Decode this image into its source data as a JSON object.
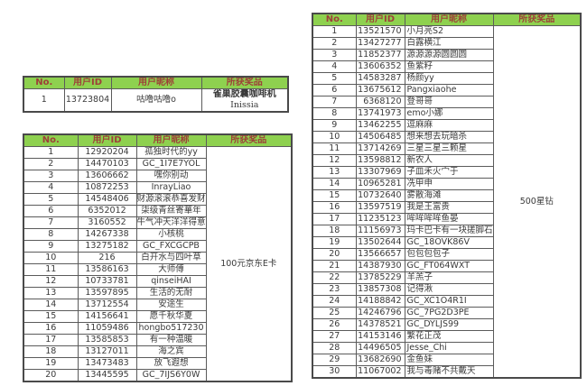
{
  "colors": {
    "header_bg": "#8ed14f",
    "header_text": "#9d4038",
    "body_text": "#3a3a3a",
    "border": "#5b5b5b"
  },
  "tables": [
    {
      "name": "coffee-machine-winner",
      "headers": [
        "No.",
        "用户ID",
        "用户昵称",
        "所获奖品"
      ],
      "prize_lines": [
        "雀巢胶囊咖啡机",
        "Inissia"
      ],
      "rows": [
        [
          "1",
          "13723804",
          "咕噜咕噜o"
        ]
      ]
    },
    {
      "name": "jd-ecard-winners",
      "headers": [
        "No.",
        "用户ID",
        "用户昵称",
        "所获奖品"
      ],
      "prize": "100元京东E卡",
      "rows": [
        [
          "1",
          "12920204",
          "孤独时代的yy"
        ],
        [
          "2",
          "14470103",
          "GC_1I7E7YOL"
        ],
        [
          "3",
          "13606662",
          "嘿你别动"
        ],
        [
          "4",
          "10872253",
          "InrayLiao"
        ],
        [
          "5",
          "14548406",
          "财源滚滚恭喜发财"
        ],
        [
          "6",
          "6352012",
          "柒级青丝寄華年"
        ],
        [
          "7",
          "3160552",
          "牛气冲天洋洋得意"
        ],
        [
          "8",
          "14267338",
          "小核桃"
        ],
        [
          "9",
          "13275182",
          "GC_FXCGCPB"
        ],
        [
          "10",
          "216",
          "白开水与四叶草"
        ],
        [
          "11",
          "13586163",
          "大师傅"
        ],
        [
          "12",
          "10733781",
          "qinseiHAI"
        ],
        [
          "13",
          "13597895",
          "生活的无耐"
        ],
        [
          "14",
          "13712554",
          "安途生"
        ],
        [
          "15",
          "14156641",
          "愿千秋华夏"
        ],
        [
          "16",
          "11059486",
          "hongbo517230"
        ],
        [
          "17",
          "13585853",
          "有一种温暖"
        ],
        [
          "18",
          "13127011",
          "海之宾"
        ],
        [
          "19",
          "13473483",
          "放飞遐想"
        ],
        [
          "20",
          "13445595",
          "GC_7IJS6Y0W"
        ]
      ]
    },
    {
      "name": "star-diamond-winners",
      "headers": [
        "No.",
        "用户ID",
        "用户昵称",
        "所获奖品"
      ],
      "prize": "500星钻",
      "rows": [
        [
          "1",
          "13521570",
          "小月亮S2"
        ],
        [
          "2",
          "13427277",
          "白露横江"
        ],
        [
          "3",
          "11852377",
          "源源源源圆圆圆"
        ],
        [
          "4",
          "13606352",
          "鱼紫籽"
        ],
        [
          "5",
          "14583287",
          "杨颜yy"
        ],
        [
          "6",
          "13675612",
          "Pangxiaohe"
        ],
        [
          "7",
          "6368120",
          "登哥哥"
        ],
        [
          "8",
          "13741973",
          "emo小娜"
        ],
        [
          "9",
          "13462255",
          "逗麻麻"
        ],
        [
          "10",
          "14506485",
          "想来想去玩暗杀"
        ],
        [
          "11",
          "13714269",
          "三星三星三颗星"
        ],
        [
          "12",
          "13598812",
          "新农人"
        ],
        [
          "13",
          "13307969",
          "子皿禾火宀于"
        ],
        [
          "14",
          "10965281",
          "冼甲申"
        ],
        [
          "15",
          "10732640",
          "雾散海滩"
        ],
        [
          "16",
          "13597519",
          "我是王富贵"
        ],
        [
          "17",
          "11235123",
          "哞哞哞哞鱼晏"
        ],
        [
          "18",
          "11156973",
          "玛卡巴卡有一块搓脚石"
        ],
        [
          "19",
          "13502644",
          "GC_18OVK86V"
        ],
        [
          "20",
          "13566657",
          "包包包包子"
        ],
        [
          "21",
          "14387930",
          "GC_FT064WXT"
        ],
        [
          "22",
          "13785229",
          "羊羔子"
        ],
        [
          "23",
          "13857308",
          "记得湫"
        ],
        [
          "24",
          "14188842",
          "GC_XC1O4R1I"
        ],
        [
          "25",
          "14246796",
          "GC_7PG2D3PE"
        ],
        [
          "26",
          "14378521",
          "GC_DYLJS99"
        ],
        [
          "27",
          "14153146",
          "繁花正茂"
        ],
        [
          "28",
          "14496505",
          "Jesse_Chi"
        ],
        [
          "29",
          "13682690",
          "金鱼妹"
        ],
        [
          "30",
          "11067002",
          "我与毒赌不共戴天"
        ]
      ]
    }
  ]
}
